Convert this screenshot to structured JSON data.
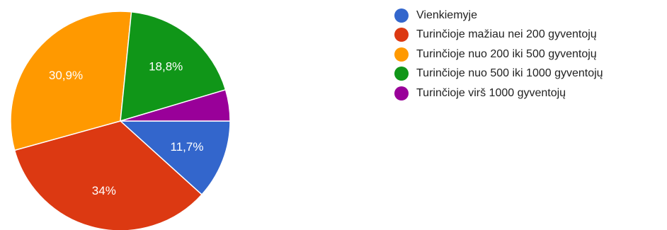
{
  "chart_data": {
    "type": "pie",
    "legend_position": "right",
    "slices": [
      {
        "name": "Vienkiemyje",
        "value": 11.7,
        "label": "11,7%",
        "color": "#3366cc"
      },
      {
        "name": "Turinčioje mažiau nei 200 gyventojų",
        "value": 34,
        "label": "34%",
        "color": "#dc3912"
      },
      {
        "name": "Turinčioje nuo 200 iki 500 gyventojų",
        "value": 30.9,
        "label": "30,9%",
        "color": "#ff9900"
      },
      {
        "name": "Turinčioje nuo 500 iki 1000 gyventojų",
        "value": 18.8,
        "label": "18,8%",
        "color": "#109618"
      },
      {
        "name": "Turinčioje virš 1000 gyventojų",
        "value": 4.6,
        "label": "",
        "color": "#990099"
      }
    ]
  }
}
